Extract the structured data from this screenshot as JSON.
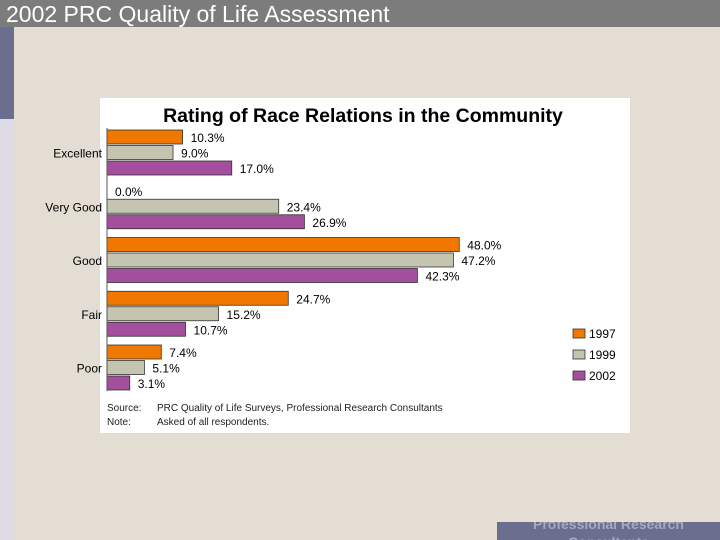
{
  "slide": {
    "header_title": "2002 PRC Quality of Life Assessment",
    "footer_text": "Professional Research Consultants"
  },
  "chart_data": {
    "type": "bar",
    "orientation": "horizontal",
    "title": "Rating of Race Relations in the Community",
    "categories": [
      "Excellent",
      "Very Good",
      "Good",
      "Fair",
      "Poor"
    ],
    "series": [
      {
        "name": "1997",
        "color": "#f07800",
        "values": [
          10.3,
          0.0,
          48.0,
          24.7,
          7.4
        ],
        "labels": [
          "10.3%",
          "0.0%",
          "48.0%",
          "24.7%",
          "7.4%"
        ]
      },
      {
        "name": "1999",
        "color": "#c4c4b0",
        "values": [
          9.0,
          23.4,
          47.2,
          15.2,
          5.1
        ],
        "labels": [
          "9.0%",
          "23.4%",
          "47.2%",
          "15.2%",
          "5.1%"
        ]
      },
      {
        "name": "2002",
        "color": "#a34f9e",
        "values": [
          17.0,
          26.9,
          42.3,
          10.7,
          3.1
        ],
        "labels": [
          "17.0%",
          "26.9%",
          "42.3%",
          "10.7%",
          "3.1%"
        ]
      }
    ],
    "xlim": [
      0,
      59
    ],
    "legend_position": "right",
    "grid": false,
    "notes": [
      {
        "key": "Source:",
        "text": "PRC Quality of Life Surveys, Professional Research Consultants"
      },
      {
        "key": "Note:",
        "text": "Asked of all respondents."
      }
    ]
  }
}
